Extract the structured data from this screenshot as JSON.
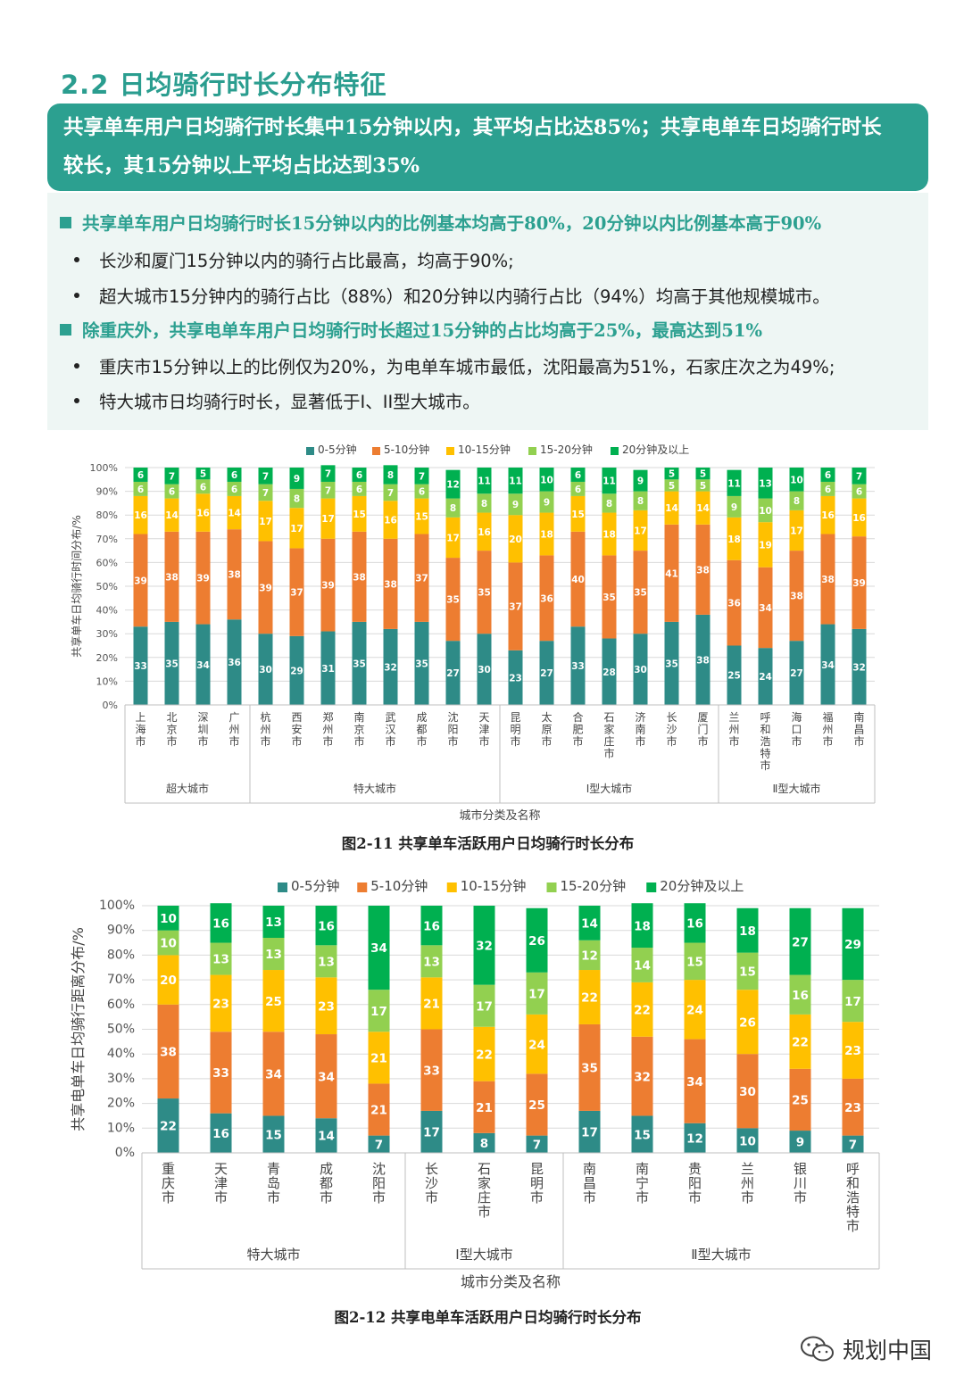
{
  "section_title": "2.2 日均骑行时长分布特征",
  "banner": {
    "line1": "共享单车用户日均骑行时长集中15分钟以内，其平均占比达85%；共享电单车日均骑行时长",
    "line2": "较长，其15分钟以上平均占比达到35%"
  },
  "points": [
    {
      "type": "main",
      "text": "共享单车用户日均骑行时长15分钟以内的比例基本均高于80%，20分钟以内比例基本高于90%"
    },
    {
      "type": "sub",
      "text": "长沙和厦门15分钟以内的骑行占比最高，均高于90%;"
    },
    {
      "type": "sub",
      "text": "超大城市15分钟内的骑行占比（88%）和20分钟以内骑行占比（94%）均高于其他规模城市。"
    },
    {
      "type": "main",
      "text": "除重庆外，共享电单车用户日均骑行时长超过15分钟的占比均高于25%，最高达到51%"
    },
    {
      "type": "sub",
      "text": "重庆市15分钟以上的比例仅为20%，为电单车城市最低，沈阳最高为51%，石家庄次之为49%;"
    },
    {
      "type": "sub",
      "text": "特大城市日均骑行时长，显著低于I、II型大城市。"
    }
  ],
  "colors": {
    "s0": "#2e8b87",
    "s1": "#ed7d31",
    "s2": "#ffc000",
    "s3": "#92d050",
    "s4": "#00b050",
    "accent": "#2ca090"
  },
  "chart_data": [
    {
      "type": "bar",
      "stacked": true,
      "caption": "图2-11 共享单车活跃用户日均骑行时长分布",
      "ylabel": "共享单车日均骑行时间分布/%",
      "xlabel": "城市分类及名称",
      "ylim": [
        0,
        100
      ],
      "yticks": [
        "0%",
        "10%",
        "20%",
        "30%",
        "40%",
        "50%",
        "60%",
        "70%",
        "80%",
        "90%",
        "100%"
      ],
      "legend": [
        "0-5分钟",
        "5-10分钟",
        "10-15分钟",
        "15-20分钟",
        "20分钟及以上"
      ],
      "groups": [
        {
          "name": "超大城市",
          "count": 4
        },
        {
          "name": "特大城市",
          "count": 8
        },
        {
          "name": "Ⅰ型大城市",
          "count": 7
        },
        {
          "name": "Ⅱ型大城市",
          "count": 5
        }
      ],
      "categories": [
        "上海市",
        "北京市",
        "深圳市",
        "广州市",
        "杭州市",
        "西安市",
        "郑州市",
        "南京市",
        "武汉市",
        "成都市",
        "沈阳市",
        "天津市",
        "昆明市",
        "太原市",
        "合肥市",
        "石家庄市",
        "济南市",
        "长沙市",
        "厦门市",
        "兰州市",
        "呼和浩特市",
        "海口市",
        "福州市",
        "南昌市"
      ],
      "series": [
        {
          "name": "0-5分钟",
          "values": [
            33,
            35,
            34,
            36,
            30,
            29,
            31,
            35,
            32,
            35,
            27,
            30,
            23,
            27,
            33,
            28,
            30,
            35,
            38,
            25,
            24,
            27,
            34,
            32
          ]
        },
        {
          "name": "5-10分钟",
          "values": [
            39,
            38,
            39,
            38,
            39,
            37,
            39,
            38,
            38,
            37,
            35,
            35,
            37,
            36,
            40,
            35,
            35,
            41,
            38,
            36,
            34,
            38,
            38,
            39
          ]
        },
        {
          "name": "10-15分钟",
          "values": [
            16,
            14,
            16,
            14,
            17,
            17,
            17,
            15,
            16,
            15,
            17,
            16,
            20,
            18,
            15,
            18,
            17,
            14,
            14,
            18,
            19,
            17,
            16,
            16
          ]
        },
        {
          "name": "15-20分钟",
          "values": [
            6,
            6,
            6,
            6,
            7,
            8,
            7,
            6,
            7,
            6,
            8,
            8,
            9,
            9,
            6,
            8,
            8,
            5,
            5,
            9,
            10,
            8,
            6,
            6
          ]
        },
        {
          "name": "20分钟及以上",
          "values": [
            6,
            7,
            5,
            6,
            7,
            9,
            7,
            6,
            8,
            7,
            12,
            11,
            11,
            10,
            6,
            11,
            9,
            5,
            5,
            11,
            13,
            10,
            6,
            7
          ]
        }
      ]
    },
    {
      "type": "bar",
      "stacked": true,
      "caption": "图2-12 共享电单车活跃用户日均骑行时长分布",
      "ylabel": "共享电单车日均骑行距离分布/%",
      "xlabel": "城市分类及名称",
      "ylim": [
        0,
        100
      ],
      "yticks": [
        "0%",
        "10%",
        "20%",
        "30%",
        "40%",
        "50%",
        "60%",
        "70%",
        "80%",
        "90%",
        "100%"
      ],
      "legend": [
        "0-5分钟",
        "5-10分钟",
        "10-15分钟",
        "15-20分钟",
        "20分钟及以上"
      ],
      "groups": [
        {
          "name": "特大城市",
          "count": 5
        },
        {
          "name": "Ⅰ型大城市",
          "count": 3
        },
        {
          "name": "Ⅱ型大城市",
          "count": 6
        }
      ],
      "categories": [
        "重庆市",
        "天津市",
        "青岛市",
        "成都市",
        "沈阳市",
        "长沙市",
        "石家庄市",
        "昆明市",
        "南昌市",
        "南宁市",
        "贵阳市",
        "兰州市",
        "银川市",
        "呼和浩特市"
      ],
      "series": [
        {
          "name": "0-5分钟",
          "values": [
            22,
            16,
            15,
            14,
            7,
            17,
            8,
            7,
            17,
            15,
            12,
            10,
            9,
            7
          ]
        },
        {
          "name": "5-10分钟",
          "values": [
            38,
            33,
            34,
            34,
            21,
            33,
            21,
            25,
            35,
            32,
            34,
            30,
            25,
            23
          ]
        },
        {
          "name": "10-15分钟",
          "values": [
            20,
            23,
            25,
            23,
            21,
            21,
            22,
            24,
            22,
            22,
            24,
            26,
            22,
            23
          ]
        },
        {
          "name": "15-20分钟",
          "values": [
            10,
            13,
            13,
            13,
            17,
            13,
            17,
            17,
            12,
            14,
            15,
            15,
            16,
            17
          ]
        },
        {
          "name": "20分钟及以上",
          "values": [
            10,
            16,
            13,
            16,
            34,
            16,
            32,
            26,
            14,
            18,
            16,
            18,
            27,
            29
          ]
        }
      ]
    }
  ],
  "watermark": "规划中国"
}
